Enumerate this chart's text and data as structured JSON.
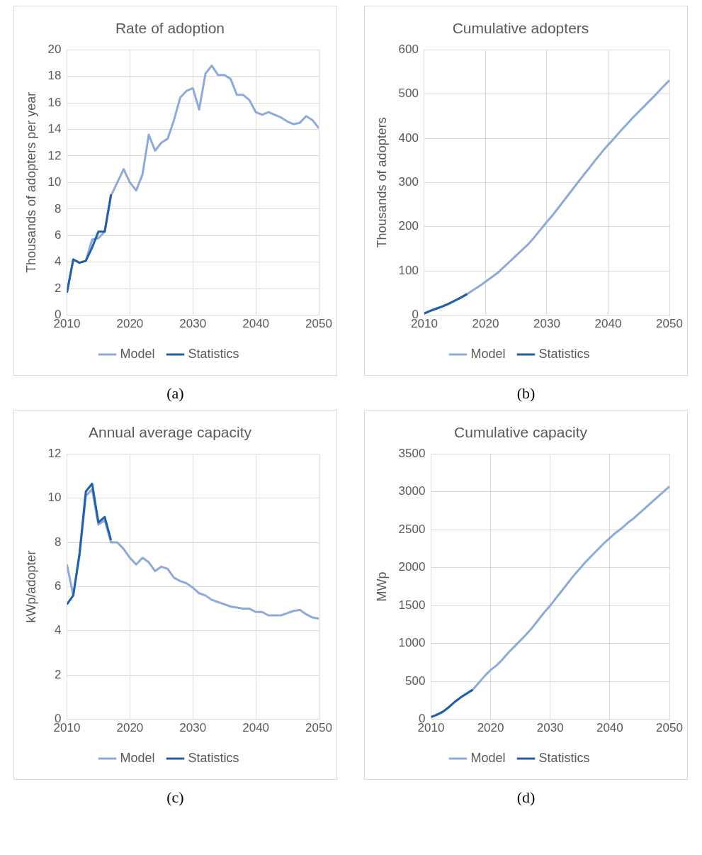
{
  "chart_data": [
    {
      "type": "line",
      "title": "Rate of adoption",
      "ylabel": "Thousands of adopters per year",
      "x": [
        2010,
        2011,
        2012,
        2013,
        2014,
        2015,
        2016,
        2017,
        2018,
        2019,
        2020,
        2021,
        2022,
        2023,
        2024,
        2025,
        2026,
        2027,
        2028,
        2029,
        2030,
        2031,
        2032,
        2033,
        2034,
        2035,
        2036,
        2037,
        2038,
        2039,
        2040,
        2041,
        2042,
        2043,
        2044,
        2045,
        2046,
        2047,
        2048,
        2049,
        2050
      ],
      "xlim": [
        2010,
        2050
      ],
      "xticks": [
        2010,
        2020,
        2030,
        2040,
        2050
      ],
      "ylim": [
        0,
        20
      ],
      "yticks": [
        0,
        2,
        4,
        6,
        8,
        10,
        12,
        14,
        16,
        18,
        20
      ],
      "grid": true,
      "legend": "bottom",
      "annotations": [
        "(a)"
      ],
      "series": [
        {
          "name": "Model",
          "color": "#8eaadb",
          "values": [
            1.7,
            4.2,
            3.95,
            4.1,
            5.7,
            5.8,
            6.3,
            9.0,
            10.0,
            11.0,
            10.0,
            9.4,
            10.6,
            13.6,
            12.4,
            13.0,
            13.3,
            14.7,
            16.4,
            16.9,
            17.1,
            15.5,
            18.2,
            18.8,
            18.1,
            18.1,
            17.8,
            16.6,
            16.6,
            16.2,
            15.3,
            15.1,
            15.3,
            15.1,
            14.9,
            14.6,
            14.4,
            14.5,
            15.0,
            14.7,
            14.1
          ]
        },
        {
          "name": "Statistics",
          "color": "#1f5fae",
          "x": [
            2010,
            2011,
            2012,
            2013,
            2014,
            2015,
            2016,
            2017
          ],
          "values": [
            1.7,
            4.2,
            3.95,
            4.1,
            5.1,
            6.3,
            6.3,
            9.1
          ]
        }
      ]
    },
    {
      "type": "line",
      "title": "Cumulative adopters",
      "ylabel": "Thousands of adopters",
      "x": [
        2010,
        2011,
        2012,
        2013,
        2014,
        2015,
        2016,
        2017,
        2018,
        2019,
        2020,
        2021,
        2022,
        2023,
        2024,
        2025,
        2026,
        2027,
        2028,
        2029,
        2030,
        2031,
        2032,
        2033,
        2034,
        2035,
        2036,
        2037,
        2038,
        2039,
        2040,
        2041,
        2042,
        2043,
        2044,
        2045,
        2046,
        2047,
        2048,
        2049,
        2050
      ],
      "xlim": [
        2010,
        2050
      ],
      "xticks": [
        2010,
        2020,
        2030,
        2040,
        2050
      ],
      "ylim": [
        0,
        600
      ],
      "yticks": [
        0,
        100,
        200,
        300,
        400,
        500,
        600
      ],
      "grid": true,
      "legend": "bottom",
      "annotations": [
        "(b)"
      ],
      "series": [
        {
          "name": "Model",
          "color": "#8eaadb",
          "values": [
            4,
            10,
            15,
            20,
            26,
            33,
            40,
            48,
            57,
            66,
            76,
            86,
            96,
            109,
            122,
            135,
            148,
            161,
            177,
            194,
            211,
            227,
            245,
            263,
            281,
            299,
            317,
            334,
            352,
            369,
            385,
            400,
            416,
            431,
            446,
            460,
            474,
            488,
            502,
            517,
            531
          ]
        },
        {
          "name": "Statistics",
          "color": "#1f5fae",
          "x": [
            2010,
            2011,
            2012,
            2013,
            2014,
            2015,
            2016,
            2017
          ],
          "values": [
            4,
            10,
            15,
            20,
            26,
            33,
            40,
            48
          ]
        }
      ]
    },
    {
      "type": "line",
      "title": "Annual average capacity",
      "ylabel": "kWp/adopter",
      "x": [
        2010,
        2011,
        2012,
        2013,
        2014,
        2015,
        2016,
        2017,
        2018,
        2019,
        2020,
        2021,
        2022,
        2023,
        2024,
        2025,
        2026,
        2027,
        2028,
        2029,
        2030,
        2031,
        2032,
        2033,
        2034,
        2035,
        2036,
        2037,
        2038,
        2039,
        2040,
        2041,
        2042,
        2043,
        2044,
        2045,
        2046,
        2047,
        2048,
        2049,
        2050
      ],
      "xlim": [
        2010,
        2050
      ],
      "xticks": [
        2010,
        2020,
        2030,
        2040,
        2050
      ],
      "ylim": [
        0,
        12
      ],
      "yticks": [
        0,
        2,
        4,
        6,
        8,
        10,
        12
      ],
      "grid": true,
      "legend": "bottom",
      "annotations": [
        "(c)"
      ],
      "series": [
        {
          "name": "Model",
          "color": "#8eaadb",
          "values": [
            7.0,
            5.6,
            7.4,
            10.1,
            10.4,
            8.8,
            9.0,
            8.0,
            8.0,
            7.7,
            7.3,
            7.0,
            7.3,
            7.1,
            6.7,
            6.9,
            6.8,
            6.4,
            6.25,
            6.15,
            5.95,
            5.7,
            5.6,
            5.4,
            5.3,
            5.2,
            5.1,
            5.05,
            5.0,
            5.0,
            4.85,
            4.85,
            4.7,
            4.7,
            4.7,
            4.8,
            4.9,
            4.95,
            4.75,
            4.6,
            4.55
          ]
        },
        {
          "name": "Statistics",
          "color": "#1f5fae",
          "x": [
            2010,
            2011,
            2012,
            2013,
            2014,
            2015,
            2016,
            2017
          ],
          "values": [
            5.2,
            5.6,
            7.5,
            10.3,
            10.65,
            8.9,
            9.15,
            8.1
          ]
        }
      ]
    },
    {
      "type": "line",
      "title": "Cumulative capacity",
      "ylabel": "MWp",
      "x": [
        2010,
        2011,
        2012,
        2013,
        2014,
        2015,
        2016,
        2017,
        2018,
        2019,
        2020,
        2021,
        2022,
        2023,
        2024,
        2025,
        2026,
        2027,
        2028,
        2029,
        2030,
        2031,
        2032,
        2033,
        2034,
        2035,
        2036,
        2037,
        2038,
        2039,
        2040,
        2041,
        2042,
        2043,
        2044,
        2045,
        2046,
        2047,
        2048,
        2049,
        2050
      ],
      "xlim": [
        2010,
        2050
      ],
      "xticks": [
        2010,
        2020,
        2030,
        2040,
        2050
      ],
      "ylim": [
        0,
        3500
      ],
      "yticks": [
        0,
        500,
        1000,
        1500,
        2000,
        2500,
        3000,
        3500
      ],
      "grid": true,
      "legend": "bottom",
      "annotations": [
        "(d)"
      ],
      "series": [
        {
          "name": "Model",
          "color": "#8eaadb",
          "values": [
            30,
            60,
            100,
            160,
            230,
            290,
            340,
            390,
            480,
            570,
            650,
            710,
            790,
            880,
            960,
            1040,
            1120,
            1210,
            1310,
            1410,
            1500,
            1600,
            1700,
            1800,
            1900,
            1990,
            2080,
            2160,
            2240,
            2320,
            2390,
            2460,
            2520,
            2590,
            2650,
            2720,
            2790,
            2860,
            2930,
            3000,
            3070
          ]
        },
        {
          "name": "Statistics",
          "color": "#1f5fae",
          "x": [
            2010,
            2011,
            2012,
            2013,
            2014,
            2015,
            2016,
            2017
          ],
          "values": [
            30,
            60,
            100,
            160,
            230,
            290,
            340,
            390
          ]
        }
      ]
    }
  ]
}
